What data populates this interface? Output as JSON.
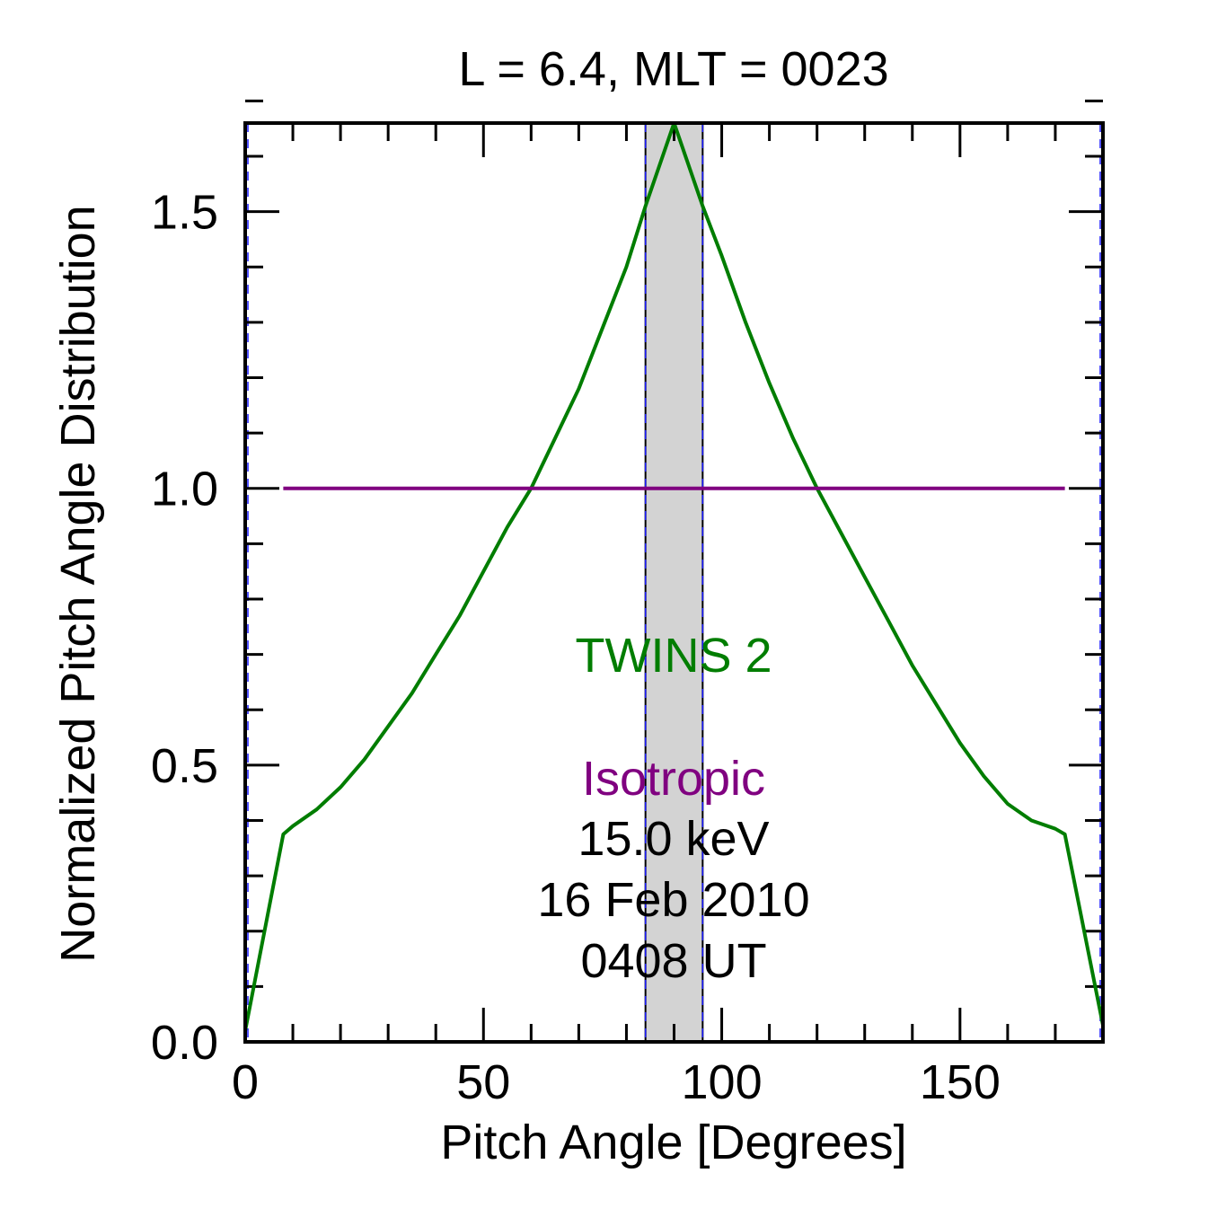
{
  "chart_data": {
    "type": "line",
    "title": "L =  6.4, MLT = 0023",
    "xlabel": "Pitch Angle [Degrees]",
    "ylabel": "Normalized Pitch Angle Distribution",
    "xlim": [
      0,
      180
    ],
    "ylim": [
      0,
      1.66
    ],
    "x_ticks": [
      0,
      50,
      100,
      150
    ],
    "x_tick_labels": [
      "0",
      "50",
      "100",
      "150"
    ],
    "y_ticks": [
      0.0,
      0.5,
      1.0,
      1.5
    ],
    "y_tick_labels": [
      "0.0",
      "0.5",
      "1.0",
      "1.5"
    ],
    "x_minor_step": 10,
    "y_minor_step": 0.1,
    "grid": false,
    "shaded_band": {
      "x": [
        84,
        96
      ],
      "color": "#d3d3d3"
    },
    "series": [
      {
        "name": "TWINS 2",
        "color": "#007d00",
        "x": [
          0,
          8,
          10,
          15,
          20,
          25,
          30,
          35,
          40,
          45,
          50,
          55,
          60,
          65,
          70,
          75,
          80,
          84,
          90,
          96,
          100,
          105,
          110,
          115,
          120,
          125,
          130,
          135,
          140,
          145,
          150,
          155,
          160,
          165,
          170,
          172,
          180
        ],
        "y": [
          0.02,
          0.375,
          0.39,
          0.42,
          0.46,
          0.51,
          0.57,
          0.63,
          0.7,
          0.77,
          0.85,
          0.93,
          1.0,
          1.09,
          1.18,
          1.29,
          1.4,
          1.51,
          1.66,
          1.51,
          1.42,
          1.3,
          1.19,
          1.09,
          1.0,
          0.92,
          0.84,
          0.76,
          0.68,
          0.61,
          0.54,
          0.48,
          0.43,
          0.4,
          0.385,
          0.375,
          0.03
        ]
      },
      {
        "name": "Isotropic",
        "color": "#800080",
        "x": [
          8,
          172
        ],
        "y": [
          1.0,
          1.0
        ]
      }
    ],
    "annotations": {
      "series_label_1": "TWINS 2",
      "series_label_2": "Isotropic",
      "energy": "15.0 keV",
      "date": "16 Feb 2010",
      "time": "0408 UT"
    }
  }
}
